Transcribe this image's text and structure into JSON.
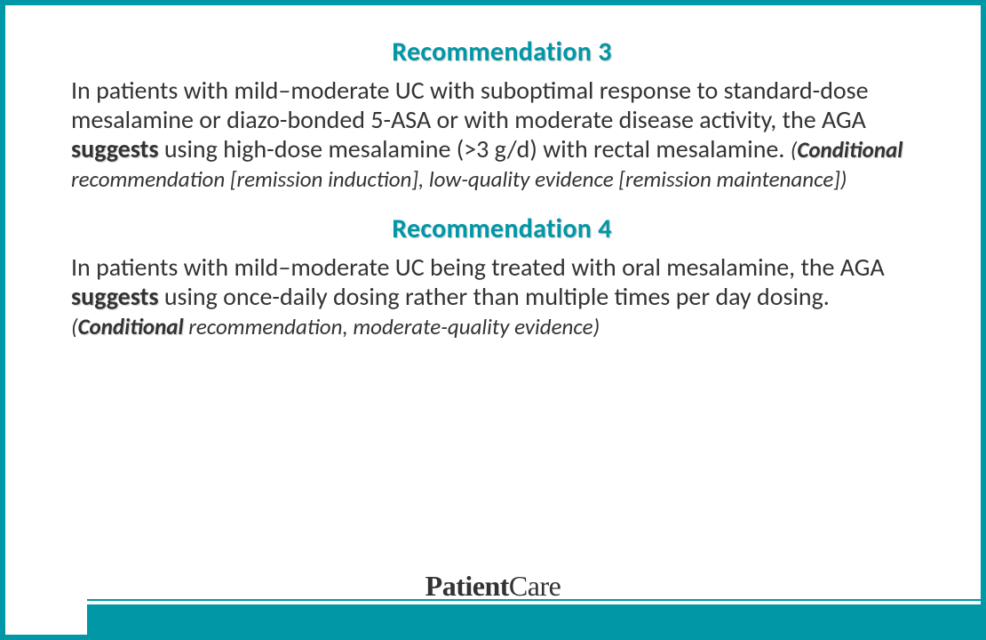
{
  "colors": {
    "accent": "#0097a7",
    "text": "#333333",
    "background": "#ffffff"
  },
  "rec3": {
    "title": "Recommendation 3",
    "pre": "In patients with mild–moderate UC with suboptimal response to standard-dose mesalamine or diazo-bonded 5-ASA or with moderate disease activity, the AGA ",
    "suggests": "suggests",
    "mid": " using high-dose mesalamine (>3 g/d) with rectal mesalamine. ",
    "paren_open": "(",
    "cond": "Conditional",
    "tail": " recommendation [remission induction], low-quality evidence [remission maintenance])"
  },
  "rec4": {
    "title": "Recommendation 4",
    "pre": "In patients with mild–moderate UC being treated with oral mesalamine, the AGA ",
    "suggests": "suggests",
    "mid": " using once-daily dosing rather than multiple times per day dosing. ",
    "paren_open": "(",
    "cond": "Conditional",
    "tail": " recommendation, moderate-quality evidence)"
  },
  "logo": {
    "part1": "Patient",
    "part2": "Care"
  }
}
